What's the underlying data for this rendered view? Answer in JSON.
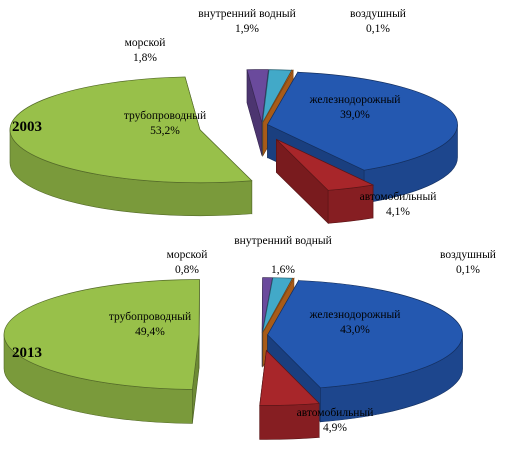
{
  "chart_data": [
    {
      "type": "pie",
      "title": "2003",
      "slices": [
        {
          "name": "железнодорожный",
          "value": 39.0,
          "value_label": "39,0%",
          "color": "#2458b0"
        },
        {
          "name": "автомобильный",
          "value": 4.1,
          "value_label": "4,1%",
          "color": "#a8262a"
        },
        {
          "name": "трубопроводный",
          "value": 53.2,
          "value_label": "53,2%",
          "color": "#98c04a"
        },
        {
          "name": "морской",
          "value": 1.8,
          "value_label": "1,8%",
          "color": "#6a4a9c"
        },
        {
          "name": "внутренний водный",
          "value": 1.9,
          "value_label": "1,9%",
          "color": "#42a9c8"
        },
        {
          "name": "воздушный",
          "value": 0.1,
          "value_label": "0,1%",
          "color": "#e97f22"
        }
      ]
    },
    {
      "type": "pie",
      "title": "2013",
      "slices": [
        {
          "name": "железнодорожный",
          "value": 43.0,
          "value_label": "43,0%",
          "color": "#2458b0"
        },
        {
          "name": "автомобильный",
          "value": 4.9,
          "value_label": "4,9%",
          "color": "#a8262a"
        },
        {
          "name": "трубопроводный",
          "value": 49.4,
          "value_label": "49,4%",
          "color": "#98c04a"
        },
        {
          "name": "морской",
          "value": 0.8,
          "value_label": "0,8%",
          "color": "#6a4a9c"
        },
        {
          "name": "внутренний водный",
          "value": 1.6,
          "value_label": "1,6%",
          "color": "#42a9c8"
        },
        {
          "name": "воздушный",
          "value": 0.1,
          "value_label": "0,1%",
          "color": "#e97f22"
        }
      ]
    }
  ]
}
